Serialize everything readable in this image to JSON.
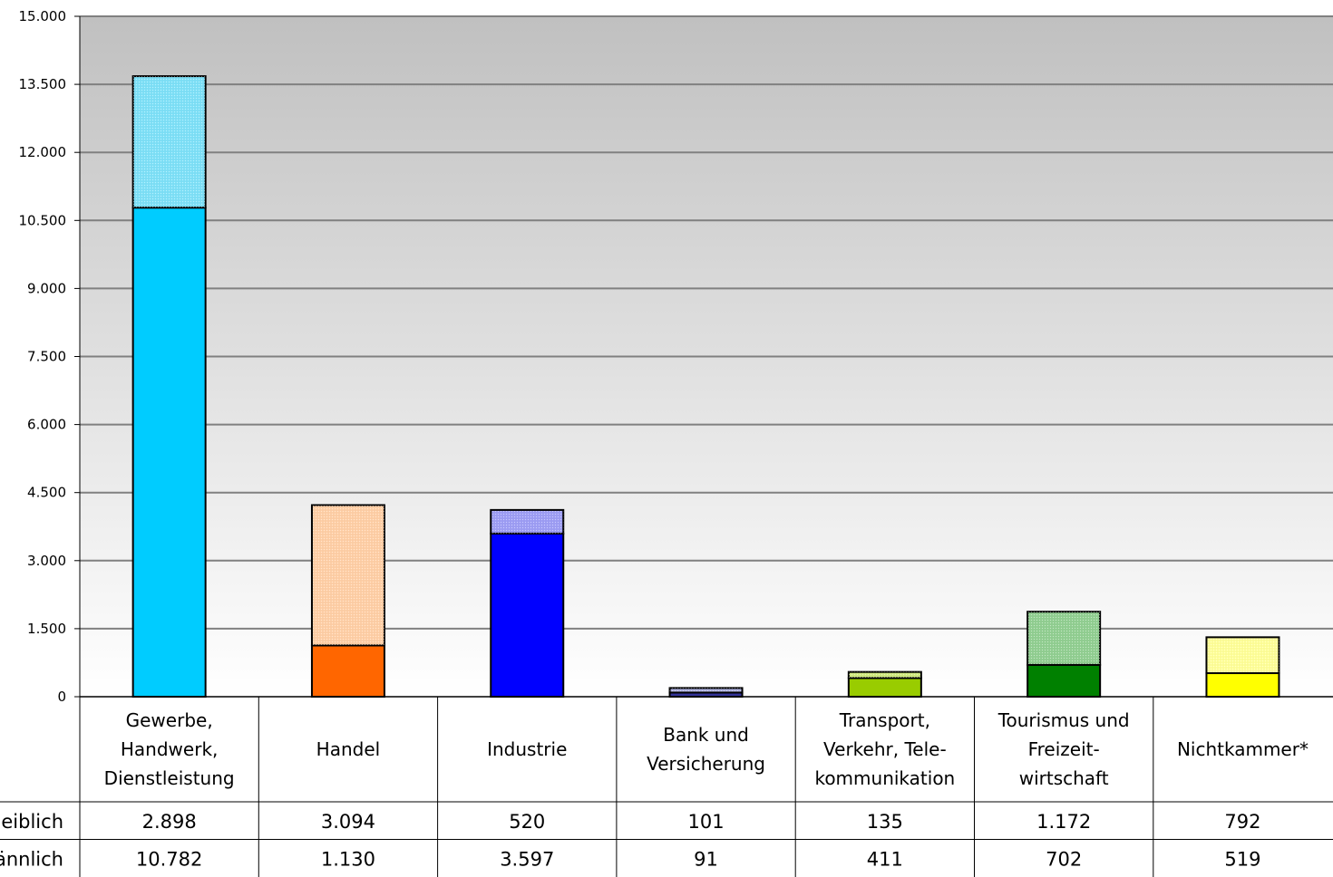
{
  "chart_data": {
    "type": "bar",
    "stacked": true,
    "categories": [
      [
        "Gewerbe,",
        "Handwerk,",
        "Dienstleistung"
      ],
      [
        "Handel"
      ],
      [
        "Industrie"
      ],
      [
        "Bank und",
        "Versicherung"
      ],
      [
        "Transport,",
        "Verkehr, Tele-",
        "kommunikation"
      ],
      [
        "Tourismus und",
        "Freizeit-",
        "wirtschaft"
      ],
      [
        "Nichtkammer*"
      ]
    ],
    "series": [
      {
        "name": "männlich",
        "values": [
          10782,
          1130,
          3597,
          91,
          411,
          702,
          519
        ],
        "value_labels": [
          "10.782",
          "1.130",
          "3.597",
          "91",
          "411",
          "702",
          "519"
        ],
        "colors": [
          "#00ccff",
          "#ff6600",
          "#0000ff",
          "#333399",
          "#99cc00",
          "#008000",
          "#ffff00"
        ]
      },
      {
        "name": "weiblich",
        "values": [
          2898,
          3094,
          520,
          101,
          135,
          1172,
          792
        ],
        "value_labels": [
          "2.898",
          "3.094",
          "520",
          "101",
          "135",
          "1.172",
          "792"
        ],
        "colors": [
          "#7fe1f8",
          "#ffcfa6",
          "#9e9ef5",
          "#aeb1e0",
          "#d1ea80",
          "#92cf92",
          "#ffff99"
        ]
      }
    ],
    "table_row_labels": [
      "eiblich",
      "ännlich"
    ],
    "ylim": [
      0,
      15000
    ],
    "yticks": [
      0,
      1500,
      3000,
      4500,
      6000,
      7500,
      9000,
      10500,
      12000,
      13500,
      15000
    ],
    "ytick_labels": [
      "0",
      "1.500",
      "3.000",
      "4.500",
      "6.000",
      "7.500",
      "9.000",
      "10.500",
      "12.000",
      "13.500",
      "15.000"
    ],
    "grid": true,
    "plot_background": "gray-to-white gradient",
    "legend": "data table below chart"
  }
}
